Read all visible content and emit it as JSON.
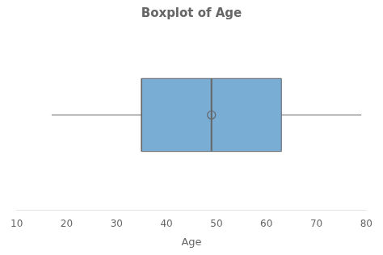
{
  "chart_data": {
    "type": "boxplot",
    "title": "Boxplot of Age",
    "xlabel": "Age",
    "xlim": [
      10,
      80
    ],
    "xticks": [
      10,
      20,
      30,
      40,
      50,
      60,
      70,
      80
    ],
    "q1": 35,
    "median": 49,
    "q3": 63,
    "whisker_low": 17,
    "whisker_high": 79,
    "mean": 49,
    "color": "#7aadd4",
    "grid": false,
    "legend": "none",
    "tick_labels": "x"
  }
}
